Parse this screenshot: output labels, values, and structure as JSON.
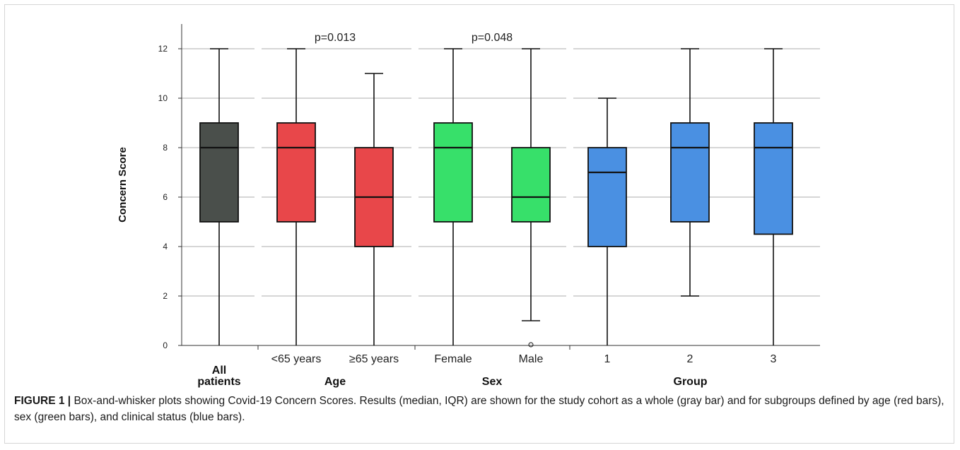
{
  "chart_data": {
    "type": "boxplot",
    "ylabel": "Concern Score",
    "ylim": [
      0,
      13
    ],
    "yticks": [
      0,
      2,
      4,
      6,
      8,
      10,
      12
    ],
    "grid": true,
    "groups": [
      {
        "label": "All\npatients",
        "categories": [
          "All patients"
        ]
      },
      {
        "label": "Age",
        "categories": [
          "<65 years",
          "≥65 years"
        ],
        "pvalue": "p=0.013"
      },
      {
        "label": "Sex",
        "categories": [
          "Female",
          "Male"
        ],
        "pvalue": "p=0.048"
      },
      {
        "label": "Group",
        "categories": [
          "1",
          "2",
          "3"
        ]
      }
    ],
    "boxes": [
      {
        "category": "All patients",
        "min": 0,
        "q1": 5,
        "median": 8,
        "q3": 9,
        "max": 12,
        "color": "#4a4f4b",
        "outliers": []
      },
      {
        "category": "<65 years",
        "min": 0,
        "q1": 5,
        "median": 8,
        "q3": 9,
        "max": 12,
        "color": "#e8474a",
        "outliers": []
      },
      {
        "category": "≥65 years",
        "min": 0,
        "q1": 4,
        "median": 6,
        "q3": 8,
        "max": 11,
        "color": "#e8474a",
        "outliers": []
      },
      {
        "category": "Female",
        "min": 0,
        "q1": 5,
        "median": 8,
        "q3": 9,
        "max": 12,
        "color": "#37e06a",
        "outliers": []
      },
      {
        "category": "Male",
        "min": 1,
        "q1": 5,
        "median": 6,
        "q3": 8,
        "max": 12,
        "color": "#37e06a",
        "outliers": [
          0
        ]
      },
      {
        "category": "1",
        "min": 0,
        "q1": 4,
        "median": 7,
        "q3": 8,
        "max": 10,
        "color": "#4a90e2",
        "outliers": []
      },
      {
        "category": "2",
        "min": 2,
        "q1": 5,
        "median": 8,
        "q3": 9,
        "max": 12,
        "color": "#4a90e2",
        "outliers": []
      },
      {
        "category": "3",
        "min": 0,
        "q1": 4.5,
        "median": 8,
        "q3": 9,
        "max": 12,
        "color": "#4a90e2",
        "outliers": []
      }
    ]
  },
  "caption": {
    "label": "FIGURE 1 |",
    "text": "Box-and-whisker plots showing Covid-19 Concern Scores. Results (median, IQR) are shown for the study cohort as a whole (gray bar) and for subgroups defined by age (red bars), sex (green bars), and clinical status (blue bars)."
  }
}
